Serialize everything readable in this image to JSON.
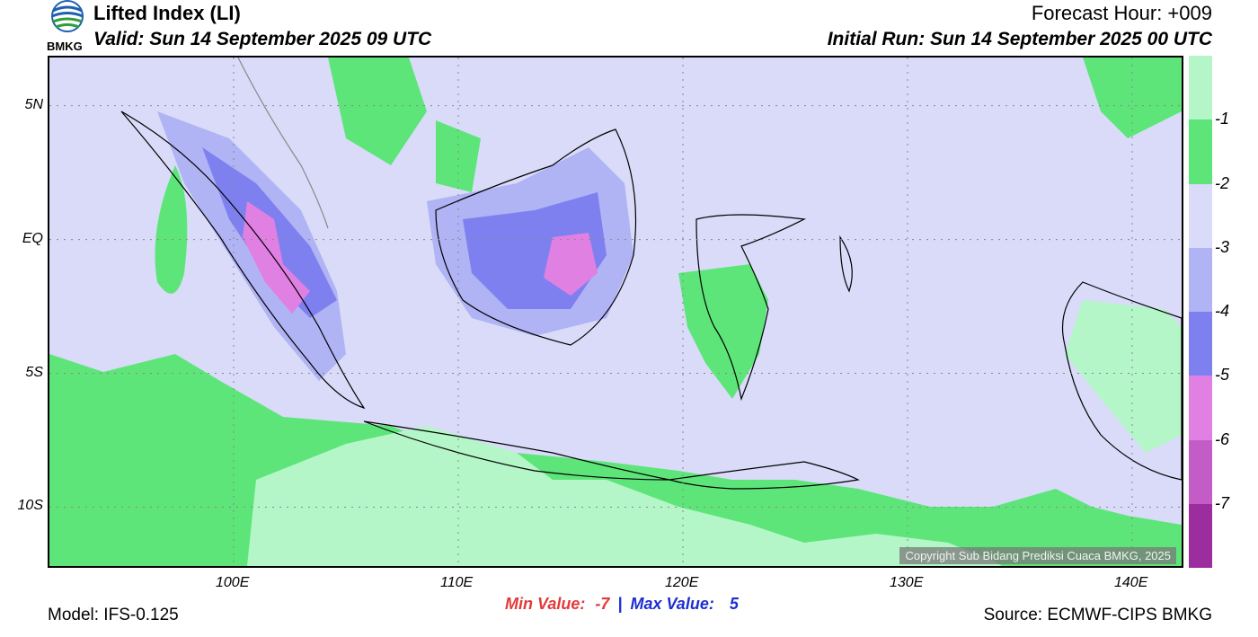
{
  "header": {
    "title": "Lifted Index (LI)",
    "valid": "Valid: Sun 14 September 2025 09 UTC",
    "forecast_hour": "Forecast Hour: +009",
    "initial_run": "Initial Run: Sun 14 September 2025 00 UTC",
    "logo_text": "BMKG"
  },
  "map": {
    "lat_labels": [
      "5N",
      "EQ",
      "5S",
      "10S"
    ],
    "lon_labels": [
      "100E",
      "110E",
      "120E",
      "130E",
      "140E"
    ],
    "lat_range": [
      -12.2,
      6.8
    ],
    "lon_range": [
      91.8,
      142.2
    ],
    "copyright": "Copyright Sub Bidang Prediksi Cuaca BMKG, 2025"
  },
  "colorbar": {
    "labels": [
      "-1",
      "-2",
      "-3",
      "-4",
      "-5",
      "-6",
      "-7"
    ],
    "colors": [
      "#b4f6c8",
      "#5ee57a",
      "#d9dbf9",
      "#b0b3f4",
      "#7f80ef",
      "#e080e2",
      "#c35cc7",
      "#9b2d9f"
    ]
  },
  "stats": {
    "min_label": "Min Value:",
    "min_value": "-7",
    "separator": "|",
    "max_label": "Max Value:",
    "max_value": "5"
  },
  "footer": {
    "model": "Model: IFS-0.125",
    "source": "Source: ECMWF-CIPS BMKG"
  }
}
